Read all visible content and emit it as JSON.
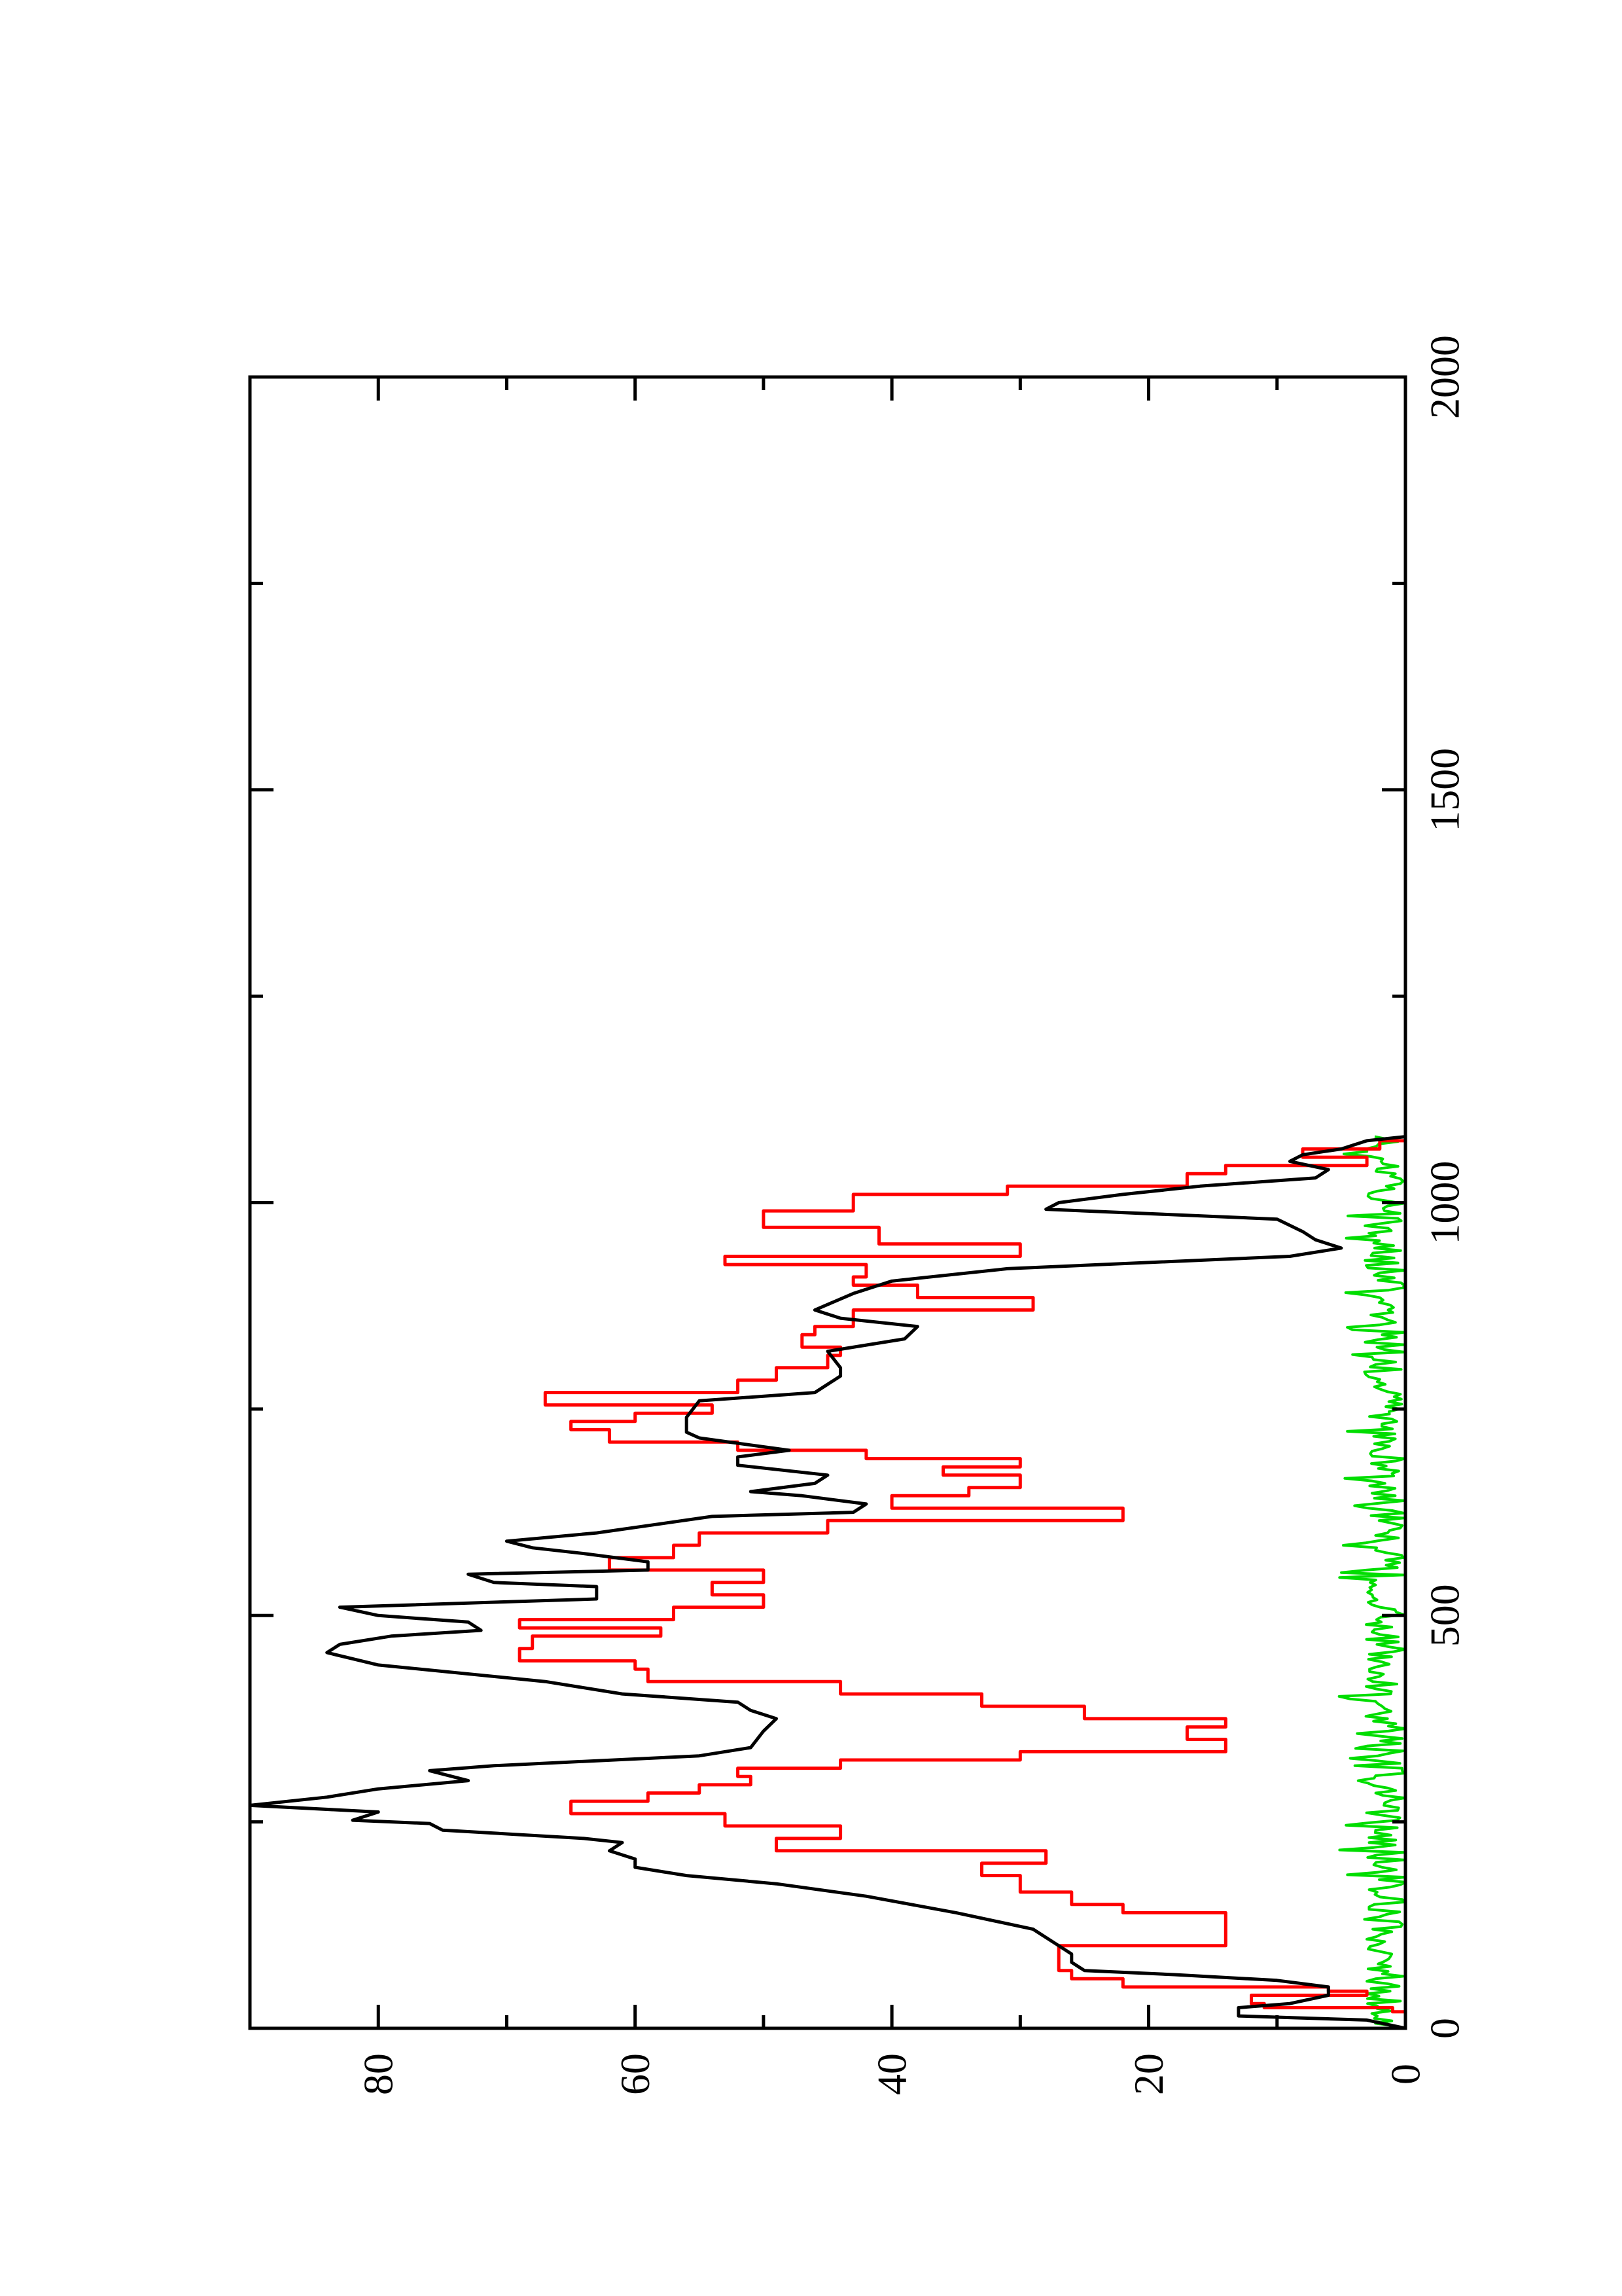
{
  "chart_data": {
    "type": "line",
    "orientation": "rotated-90-counterclockwise",
    "xlim": [
      0,
      2000
    ],
    "ylim": [
      0,
      90
    ],
    "x_ticks": [
      0,
      500,
      1000,
      1500,
      2000
    ],
    "x_tick_labels": [
      "0",
      "500",
      "1000",
      "1500",
      "2000"
    ],
    "y_ticks": [
      0,
      20,
      40,
      60,
      80
    ],
    "y_tick_labels": [
      "0",
      "20",
      "40",
      "60",
      "80"
    ],
    "x_minor_ticks": [
      250,
      750,
      1250,
      1750
    ],
    "y_minor_ticks": [
      10,
      30,
      50,
      70
    ],
    "grid": false,
    "legend": "none",
    "series": [
      {
        "color": "#000000",
        "points": [
          [
            0,
            0
          ],
          [
            10,
            3
          ],
          [
            15,
            13
          ],
          [
            25,
            13
          ],
          [
            30,
            9
          ],
          [
            40,
            6
          ],
          [
            50,
            6
          ],
          [
            58,
            10
          ],
          [
            65,
            18
          ],
          [
            70,
            25
          ],
          [
            80,
            26
          ],
          [
            90,
            26
          ],
          [
            100,
            27
          ],
          [
            120,
            29
          ],
          [
            140,
            35
          ],
          [
            160,
            42
          ],
          [
            175,
            49
          ],
          [
            185,
            56
          ],
          [
            195,
            60
          ],
          [
            205,
            60
          ],
          [
            215,
            62
          ],
          [
            225,
            61
          ],
          [
            230,
            64
          ],
          [
            240,
            75
          ],
          [
            248,
            76
          ],
          [
            252,
            82
          ],
          [
            262,
            80
          ],
          [
            270,
            90
          ],
          [
            280,
            84
          ],
          [
            290,
            80
          ],
          [
            300,
            73
          ],
          [
            312,
            76
          ],
          [
            318,
            71
          ],
          [
            330,
            55
          ],
          [
            340,
            51
          ],
          [
            360,
            50
          ],
          [
            375,
            49
          ],
          [
            385,
            51
          ],
          [
            395,
            52
          ],
          [
            405,
            61
          ],
          [
            420,
            67
          ],
          [
            440,
            80
          ],
          [
            455,
            84
          ],
          [
            465,
            83
          ],
          [
            475,
            79
          ],
          [
            482,
            72
          ],
          [
            492,
            73
          ],
          [
            500,
            80
          ],
          [
            510,
            83
          ],
          [
            520,
            63
          ],
          [
            535,
            63
          ],
          [
            540,
            71
          ],
          [
            550,
            73
          ],
          [
            555,
            59
          ],
          [
            565,
            59
          ],
          [
            575,
            64
          ],
          [
            582,
            68
          ],
          [
            590,
            70
          ],
          [
            600,
            63
          ],
          [
            620,
            54
          ],
          [
            625,
            43
          ],
          [
            635,
            42
          ],
          [
            645,
            47
          ],
          [
            650,
            51
          ],
          [
            660,
            46
          ],
          [
            670,
            45
          ],
          [
            682,
            52
          ],
          [
            692,
            52
          ],
          [
            700,
            48
          ],
          [
            715,
            55
          ],
          [
            722,
            56
          ],
          [
            740,
            56
          ],
          [
            760,
            55
          ],
          [
            770,
            46
          ],
          [
            790,
            44
          ],
          [
            800,
            44
          ],
          [
            820,
            45
          ],
          [
            835,
            39
          ],
          [
            850,
            38
          ],
          [
            860,
            44
          ],
          [
            870,
            46
          ],
          [
            890,
            43
          ],
          [
            905,
            40
          ],
          [
            920,
            31
          ],
          [
            935,
            9
          ],
          [
            945,
            5
          ],
          [
            955,
            7
          ],
          [
            965,
            8
          ],
          [
            980,
            10
          ],
          [
            992,
            28
          ],
          [
            1000,
            27
          ],
          [
            1010,
            22
          ],
          [
            1020,
            16
          ],
          [
            1030,
            7
          ],
          [
            1040,
            6
          ],
          [
            1050,
            9
          ],
          [
            1058,
            8
          ],
          [
            1065,
            5
          ],
          [
            1075,
            3
          ],
          [
            1080,
            0
          ]
        ]
      },
      {
        "color": "#ff0000",
        "step": true,
        "points": [
          [
            0,
            0
          ],
          [
            20,
            0
          ],
          [
            20,
            1
          ],
          [
            25,
            1
          ],
          [
            25,
            11
          ],
          [
            30,
            11
          ],
          [
            30,
            12
          ],
          [
            40,
            12
          ],
          [
            40,
            3
          ],
          [
            45,
            3
          ],
          [
            45,
            6
          ],
          [
            50,
            6
          ],
          [
            50,
            22
          ],
          [
            60,
            22
          ],
          [
            60,
            26
          ],
          [
            70,
            26
          ],
          [
            70,
            27
          ],
          [
            100,
            27
          ],
          [
            100,
            14
          ],
          [
            140,
            14
          ],
          [
            140,
            22
          ],
          [
            150,
            22
          ],
          [
            150,
            26
          ],
          [
            165,
            26
          ],
          [
            165,
            30
          ],
          [
            185,
            30
          ],
          [
            185,
            33
          ],
          [
            200,
            33
          ],
          [
            200,
            28
          ],
          [
            215,
            28
          ],
          [
            215,
            49
          ],
          [
            230,
            49
          ],
          [
            230,
            44
          ],
          [
            245,
            44
          ],
          [
            245,
            53
          ],
          [
            260,
            53
          ],
          [
            260,
            65
          ],
          [
            275,
            65
          ],
          [
            275,
            59
          ],
          [
            285,
            59
          ],
          [
            285,
            55
          ],
          [
            295,
            55
          ],
          [
            295,
            51
          ],
          [
            305,
            51
          ],
          [
            305,
            52
          ],
          [
            315,
            52
          ],
          [
            315,
            44
          ],
          [
            325,
            44
          ],
          [
            325,
            30
          ],
          [
            335,
            30
          ],
          [
            335,
            14
          ],
          [
            350,
            14
          ],
          [
            350,
            17
          ],
          [
            365,
            17
          ],
          [
            365,
            14
          ],
          [
            375,
            14
          ],
          [
            375,
            25
          ],
          [
            390,
            25
          ],
          [
            390,
            33
          ],
          [
            405,
            33
          ],
          [
            405,
            44
          ],
          [
            420,
            44
          ],
          [
            420,
            59
          ],
          [
            435,
            59
          ],
          [
            435,
            60
          ],
          [
            445,
            60
          ],
          [
            445,
            69
          ],
          [
            460,
            69
          ],
          [
            460,
            68
          ],
          [
            475,
            68
          ],
          [
            475,
            58
          ],
          [
            485,
            58
          ],
          [
            485,
            69
          ],
          [
            495,
            69
          ],
          [
            495,
            57
          ],
          [
            510,
            57
          ],
          [
            510,
            50
          ],
          [
            525,
            50
          ],
          [
            525,
            54
          ],
          [
            540,
            54
          ],
          [
            540,
            50
          ],
          [
            555,
            50
          ],
          [
            555,
            62
          ],
          [
            570,
            62
          ],
          [
            570,
            57
          ],
          [
            585,
            57
          ],
          [
            585,
            55
          ],
          [
            600,
            55
          ],
          [
            600,
            45
          ],
          [
            615,
            45
          ],
          [
            615,
            22
          ],
          [
            630,
            22
          ],
          [
            630,
            40
          ],
          [
            645,
            40
          ],
          [
            645,
            34
          ],
          [
            655,
            34
          ],
          [
            655,
            30
          ],
          [
            670,
            30
          ],
          [
            670,
            36
          ],
          [
            680,
            36
          ],
          [
            680,
            30
          ],
          [
            690,
            30
          ],
          [
            690,
            42
          ],
          [
            700,
            42
          ],
          [
            700,
            52
          ],
          [
            710,
            52
          ],
          [
            710,
            62
          ],
          [
            725,
            62
          ],
          [
            725,
            65
          ],
          [
            735,
            65
          ],
          [
            735,
            60
          ],
          [
            745,
            60
          ],
          [
            745,
            54
          ],
          [
            755,
            54
          ],
          [
            755,
            67
          ],
          [
            770,
            67
          ],
          [
            770,
            52
          ],
          [
            785,
            52
          ],
          [
            785,
            49
          ],
          [
            800,
            49
          ],
          [
            800,
            45
          ],
          [
            815,
            45
          ],
          [
            815,
            44
          ],
          [
            825,
            44
          ],
          [
            825,
            47
          ],
          [
            840,
            47
          ],
          [
            840,
            46
          ],
          [
            850,
            46
          ],
          [
            850,
            43
          ],
          [
            870,
            43
          ],
          [
            870,
            29
          ],
          [
            885,
            29
          ],
          [
            885,
            38
          ],
          [
            900,
            38
          ],
          [
            900,
            43
          ],
          [
            910,
            43
          ],
          [
            910,
            42
          ],
          [
            925,
            42
          ],
          [
            925,
            53
          ],
          [
            935,
            53
          ],
          [
            935,
            30
          ],
          [
            950,
            30
          ],
          [
            950,
            41
          ],
          [
            970,
            41
          ],
          [
            970,
            50
          ],
          [
            990,
            50
          ],
          [
            990,
            43
          ],
          [
            1010,
            43
          ],
          [
            1010,
            31
          ],
          [
            1020,
            31
          ],
          [
            1020,
            17
          ],
          [
            1035,
            17
          ],
          [
            1035,
            14
          ],
          [
            1045,
            14
          ],
          [
            1045,
            3
          ],
          [
            1055,
            3
          ],
          [
            1055,
            8
          ],
          [
            1065,
            8
          ],
          [
            1065,
            2
          ],
          [
            1075,
            2
          ],
          [
            1075,
            0
          ],
          [
            1080,
            0
          ]
        ]
      },
      {
        "color": "#00dd00",
        "noise": true,
        "x_end": 1080,
        "y_mean": 1.6,
        "y_amplitude": 1.6,
        "y_max": 5.2
      }
    ]
  }
}
